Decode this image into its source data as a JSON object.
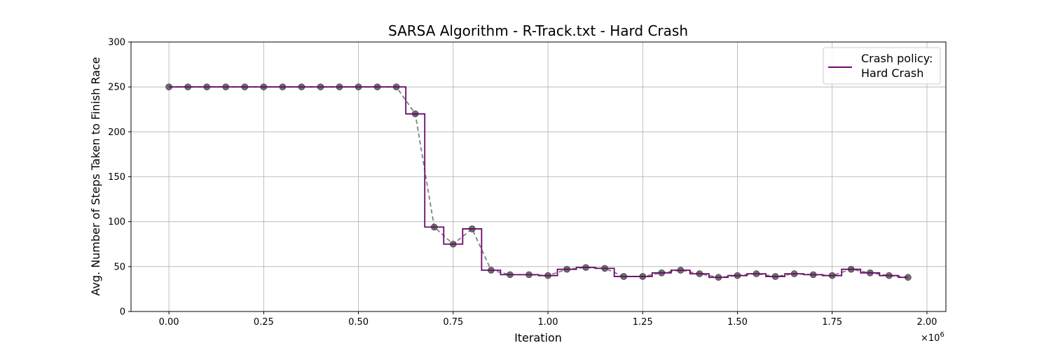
{
  "chart_data": {
    "type": "line",
    "title": "SARSA Algorithm - R-Track.txt - Hard Crash",
    "xlabel": "Iteration",
    "ylabel": "Avg. Number of Steps Taken to Finish Race",
    "x_multiplier_label": "×10",
    "x_multiplier_exponent": "6",
    "xlim": [
      -0.1,
      2.05
    ],
    "ylim": [
      0,
      300
    ],
    "x_ticks": [
      0.0,
      0.25,
      0.5,
      0.75,
      1.0,
      1.25,
      1.5,
      1.75,
      2.0
    ],
    "x_tick_labels": [
      "0.00",
      "0.25",
      "0.50",
      "0.75",
      "1.00",
      "1.25",
      "1.50",
      "1.75",
      "2.00"
    ],
    "y_ticks": [
      0,
      50,
      100,
      150,
      200,
      250,
      300
    ],
    "y_tick_labels": [
      "0",
      "50",
      "100",
      "150",
      "200",
      "250",
      "300"
    ],
    "grid": true,
    "legend_position": "top-right",
    "legend_title": "Crash policy:",
    "x": [
      0.0,
      0.05,
      0.1,
      0.15,
      0.2,
      0.25,
      0.3,
      0.35,
      0.4,
      0.45,
      0.5,
      0.55,
      0.6,
      0.65,
      0.7,
      0.75,
      0.8,
      0.85,
      0.9,
      0.95,
      1.0,
      1.05,
      1.1,
      1.15,
      1.2,
      1.25,
      1.3,
      1.35,
      1.4,
      1.45,
      1.5,
      1.55,
      1.6,
      1.65,
      1.7,
      1.75,
      1.8,
      1.85,
      1.9,
      1.95
    ],
    "series": [
      {
        "name": "Hard Crash",
        "color": "#6a0a6a",
        "style": "step-mid",
        "values": [
          250,
          250,
          250,
          250,
          250,
          250,
          250,
          250,
          250,
          250,
          250,
          250,
          250,
          220,
          94,
          75,
          92,
          46,
          41,
          41,
          40,
          47,
          49,
          48,
          39,
          39,
          43,
          46,
          42,
          38,
          40,
          42,
          39,
          42,
          41,
          40,
          47,
          43,
          40,
          38
        ]
      }
    ],
    "marker_color": "#555555",
    "dashed_line_color": "#808080"
  }
}
